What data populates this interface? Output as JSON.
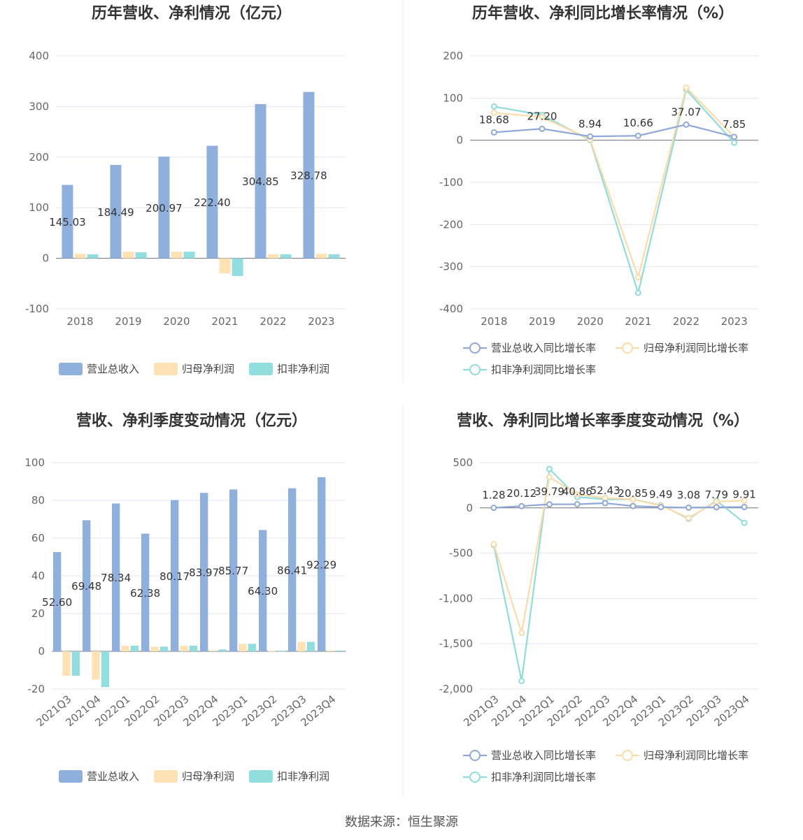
{
  "colors": {
    "revenue": "#8fafdc",
    "net_profit": "#fde3b3",
    "deducted_profit": "#92dede",
    "revenue_line": "#8fa8d8",
    "net_line": "#fbdba8",
    "deducted_line": "#8fdcd8"
  },
  "footer": {
    "source": "数据来源：恒生聚源"
  },
  "chart_data": [
    {
      "id": "annual-amount",
      "type": "bar",
      "title": "历年营收、净利情况（亿元）",
      "categories": [
        "2018",
        "2019",
        "2020",
        "2021",
        "2022",
        "2023"
      ],
      "ylim": [
        -100,
        400
      ],
      "yticks": [
        -100,
        0,
        100,
        200,
        300,
        400
      ],
      "ytick_labels": [
        "-100",
        "0",
        "100",
        "200",
        "300",
        "400"
      ],
      "series": [
        {
          "name": "营业总收入",
          "color_key": "revenue",
          "values": [
            145.03,
            184.49,
            200.97,
            222.4,
            304.85,
            328.78
          ],
          "labels": [
            "145.03",
            "184.49",
            "200.97",
            "222.40",
            "304.85",
            "328.78"
          ]
        },
        {
          "name": "归母净利润",
          "color_key": "net_profit",
          "values": [
            9,
            13,
            13,
            -30,
            8,
            9
          ]
        },
        {
          "name": "扣非净利润",
          "color_key": "deducted_profit",
          "values": [
            8,
            12,
            13,
            -35,
            8,
            8
          ]
        }
      ],
      "legend": "bottom",
      "grid": true
    },
    {
      "id": "annual-growth",
      "type": "line",
      "title": "历年营收、净利同比增长率情况（%）",
      "categories": [
        "2018",
        "2019",
        "2020",
        "2021",
        "2022",
        "2023"
      ],
      "ylim": [
        -400,
        200
      ],
      "yticks": [
        -400,
        -300,
        -200,
        -100,
        0,
        100,
        200
      ],
      "ytick_labels": [
        "-400",
        "-300",
        "-200",
        "-100",
        "0",
        "100",
        "200"
      ],
      "series": [
        {
          "name": "营业总收入同比增长率",
          "color_key": "revenue_line",
          "values": [
            18.68,
            27.2,
            8.94,
            10.66,
            37.07,
            7.85
          ],
          "labels": [
            "18.68",
            "27.20",
            "8.94",
            "10.66",
            "37.07",
            "7.85"
          ]
        },
        {
          "name": "归母净利润同比增长率",
          "color_key": "net_line",
          "values": [
            65,
            55,
            2,
            -325,
            125,
            8
          ]
        },
        {
          "name": "扣非净利润同比增长率",
          "color_key": "deducted_line",
          "values": [
            80,
            60,
            0,
            -362,
            120,
            -6
          ]
        }
      ],
      "legend": "bottom",
      "grid": true
    },
    {
      "id": "quarterly-amount",
      "type": "bar",
      "title": "营收、净利季度变动情况（亿元）",
      "categories": [
        "2021Q3",
        "2021Q4",
        "2022Q1",
        "2022Q2",
        "2022Q3",
        "2022Q4",
        "2023Q1",
        "2023Q2",
        "2023Q3",
        "2023Q4"
      ],
      "ylim": [
        -20,
        100
      ],
      "yticks": [
        -20,
        0,
        20,
        40,
        60,
        80,
        100
      ],
      "ytick_labels": [
        "-20",
        "0",
        "20",
        "40",
        "60",
        "80",
        "100"
      ],
      "series": [
        {
          "name": "营业总收入",
          "color_key": "revenue",
          "values": [
            52.6,
            69.48,
            78.34,
            62.38,
            80.17,
            83.97,
            85.77,
            64.3,
            86.41,
            92.29
          ],
          "labels": [
            "52.60",
            "69.48",
            "78.34",
            "62.38",
            "80.17",
            "83.97",
            "85.77",
            "64.30",
            "86.41",
            "92.29"
          ]
        },
        {
          "name": "归母净利润",
          "color_key": "net_profit",
          "values": [
            -13,
            -15,
            3,
            2.5,
            3,
            0.5,
            4,
            0.3,
            5,
            0.5
          ]
        },
        {
          "name": "扣非净利润",
          "color_key": "deducted_profit",
          "values": [
            -13,
            -19,
            3,
            2.5,
            3,
            1,
            4,
            0.3,
            5,
            0.4
          ]
        }
      ],
      "legend": "bottom",
      "grid": true
    },
    {
      "id": "quarterly-growth",
      "type": "line",
      "title": "营收、净利同比增长率季度变动情况（%）",
      "categories": [
        "2021Q3",
        "2021Q4",
        "2022Q1",
        "2022Q2",
        "2022Q3",
        "2022Q4",
        "2023Q1",
        "2023Q2",
        "2023Q3",
        "2023Q4"
      ],
      "ylim": [
        -2000,
        500
      ],
      "yticks": [
        -2000,
        -1500,
        -1000,
        -500,
        0,
        500
      ],
      "ytick_labels": [
        "-2,000",
        "-1,500",
        "-1,000",
        "-500",
        "0",
        "500"
      ],
      "series": [
        {
          "name": "营业总收入同比增长率",
          "color_key": "revenue_line",
          "values": [
            1.28,
            20.12,
            39.79,
            40.86,
            52.43,
            20.85,
            9.49,
            3.08,
            7.79,
            9.91
          ],
          "labels": [
            "1.28",
            "20.12",
            "39.79",
            "40.86",
            "52.43",
            "20.85",
            "9.49",
            "3.08",
            "7.79",
            "9.91"
          ]
        },
        {
          "name": "归母净利润同比增长率",
          "color_key": "net_line",
          "values": [
            -400,
            -1380,
            340,
            150,
            110,
            95,
            25,
            -110,
            70,
            80
          ]
        },
        {
          "name": "扣非净利润同比增长率",
          "color_key": "deducted_line",
          "values": [
            -410,
            -1910,
            430,
            120,
            95,
            95,
            30,
            -120,
            80,
            -165
          ]
        }
      ],
      "legend": "bottom",
      "grid": true
    }
  ]
}
